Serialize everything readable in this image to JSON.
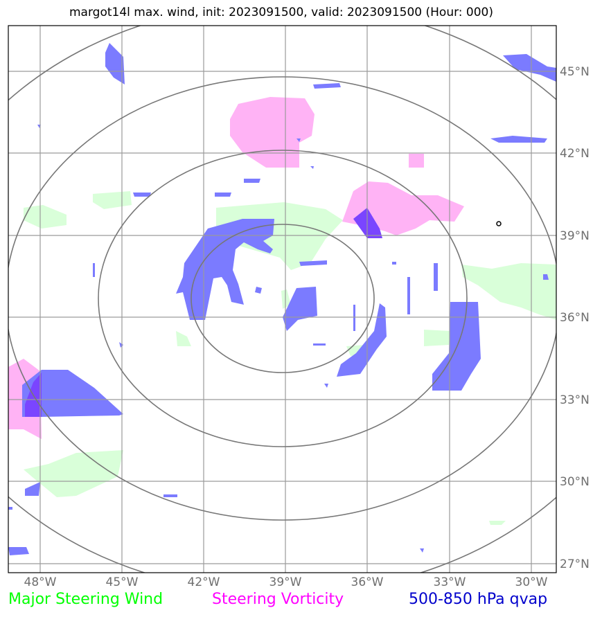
{
  "title": "margot14l max. wind, init: 2023091500, valid: 2023091500 (Hour: 000)",
  "lon_ticks": [
    "48°W",
    "45°W",
    "42°W",
    "39°W",
    "36°W",
    "33°W",
    "30°W"
  ],
  "lat_ticks": [
    "45°N",
    "42°N",
    "39°N",
    "36°N",
    "33°N",
    "30°N",
    "27°N"
  ],
  "legend": {
    "wind": "Major Steering Wind",
    "vorticity": "Steering Vorticity",
    "qvap": "500-850 hPa qvap"
  },
  "colors": {
    "wind": "#00ff00",
    "vorticity": "#ff00ff",
    "qvap": "#0000cc",
    "wind_fill": "#d9ffd9",
    "vorticity_fill": "#ffb3f5",
    "qvap_fill": "#7b7bff",
    "qvap_dark": "#7a45ff"
  }
}
